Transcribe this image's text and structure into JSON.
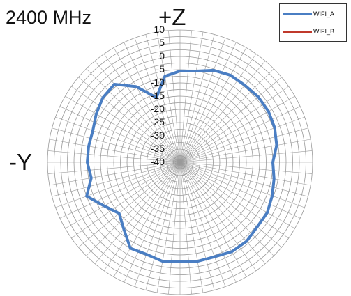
{
  "title": "2400 MHz",
  "axis_top_label": "+Z",
  "axis_left_label": "-Y",
  "legend": [
    {
      "name": "WIFI_A",
      "color": "#4a7ec3"
    },
    {
      "name": "WIFI_B",
      "color": "#c0392b"
    }
  ],
  "chart_data": {
    "type": "polar-line",
    "title": "2400 MHz",
    "r_ticks": [
      10,
      5,
      0,
      -5,
      -10,
      -15,
      -20,
      -25,
      -30,
      -35,
      -40
    ],
    "rlim": [
      -40,
      10
    ],
    "grid": true,
    "angle_convention": "degrees clockwise from +Z (top)",
    "series": [
      {
        "name": "WIFI_A",
        "color": "#4a7ec3",
        "points": [
          {
            "angle": 0,
            "value": -5.5
          },
          {
            "angle": 10,
            "value": -5
          },
          {
            "angle": 20,
            "value": -3
          },
          {
            "angle": 30,
            "value": -2
          },
          {
            "angle": 40,
            "value": -2
          },
          {
            "angle": 50,
            "value": -1.5
          },
          {
            "angle": 60,
            "value": -1.5
          },
          {
            "angle": 70,
            "value": -2
          },
          {
            "angle": 80,
            "value": -3
          },
          {
            "angle": 90,
            "value": -5
          },
          {
            "angle": 100,
            "value": -4
          },
          {
            "angle": 110,
            "value": -3
          },
          {
            "angle": 120,
            "value": -2
          },
          {
            "angle": 130,
            "value": -2
          },
          {
            "angle": 140,
            "value": -1
          },
          {
            "angle": 150,
            "value": -1
          },
          {
            "angle": 160,
            "value": -2
          },
          {
            "angle": 170,
            "value": -2
          },
          {
            "angle": 180,
            "value": -2.5
          },
          {
            "angle": 190,
            "value": -2
          },
          {
            "angle": 200,
            "value": -3
          },
          {
            "angle": 210,
            "value": -2.5
          },
          {
            "angle": 220,
            "value": -7
          },
          {
            "angle": 230,
            "value": -10
          },
          {
            "angle": 240,
            "value": -7
          },
          {
            "angle": 250,
            "value": -2.5
          },
          {
            "angle": 260,
            "value": -6
          },
          {
            "angle": 270,
            "value": -5
          },
          {
            "angle": 280,
            "value": -5
          },
          {
            "angle": 290,
            "value": -5
          },
          {
            "angle": 300,
            "value": -3.5
          },
          {
            "angle": 310,
            "value": -2
          },
          {
            "angle": 320,
            "value": -1.5
          },
          {
            "angle": 330,
            "value": -7
          },
          {
            "angle": 340,
            "value": -14
          },
          {
            "angle": 350,
            "value": -7
          }
        ]
      },
      {
        "name": "WIFI_B",
        "color": "#c0392b",
        "points": []
      }
    ]
  }
}
